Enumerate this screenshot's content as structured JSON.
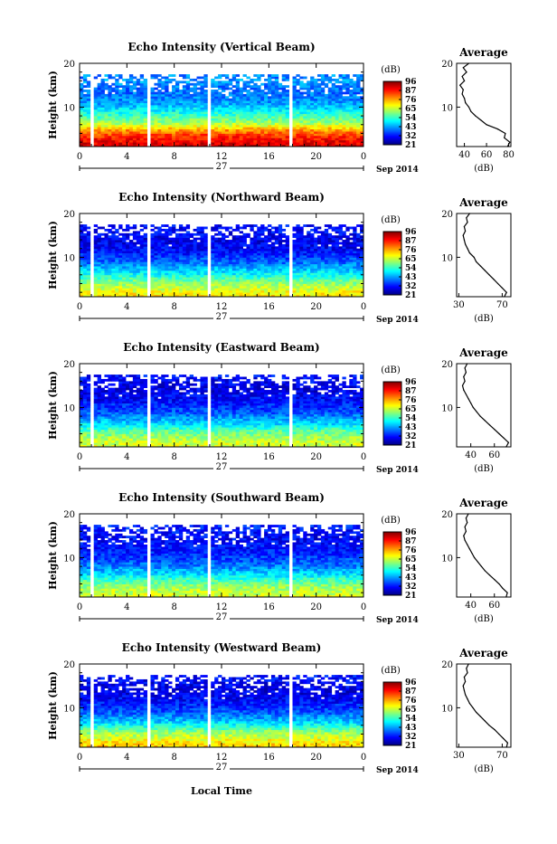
{
  "figure": {
    "xlabel": "Local Time",
    "day_label": "27",
    "date_label": "Sep 2014",
    "x_ticks": [
      "0",
      "4",
      "8",
      "12",
      "16",
      "20",
      "0"
    ],
    "ylabel": "Height (km)",
    "y_ticks": [
      "10",
      "20"
    ],
    "colorbar_unit": "(dB)",
    "colorbar_ticks": [
      "96",
      "87",
      "76",
      "65",
      "54",
      "43",
      "32",
      "21"
    ],
    "avg_title": "Average",
    "avg_xlabel": "(dB)"
  },
  "chart_data": [
    {
      "type": "heatmap",
      "title": "Echo Intensity (Vertical Beam)",
      "x_range_hours": [
        0,
        24
      ],
      "y_range_km": [
        1,
        20
      ],
      "c_range_db": [
        21,
        96
      ],
      "profile": [
        [
          1,
          90
        ],
        [
          2,
          88
        ],
        [
          3,
          85
        ],
        [
          4,
          80
        ],
        [
          5,
          74
        ],
        [
          6,
          64
        ],
        [
          7,
          58
        ],
        [
          8,
          54
        ],
        [
          9,
          50
        ],
        [
          10,
          46
        ],
        [
          11,
          42
        ],
        [
          12,
          40
        ],
        [
          13,
          39
        ],
        [
          14,
          38
        ],
        [
          15,
          40
        ],
        [
          16,
          42
        ],
        [
          17,
          39
        ],
        [
          18,
          44
        ],
        [
          19,
          48
        ],
        [
          20,
          50
        ]
      ],
      "gaps_hours": [
        [
          0.9,
          1.2
        ],
        [
          5.7,
          5.9
        ],
        [
          10.7,
          11.1
        ],
        [
          17.6,
          17.9
        ]
      ],
      "avg": {
        "xlim": [
          33,
          82
        ],
        "xticks": [
          "40",
          "60",
          "80"
        ],
        "height_km": [
          1,
          2,
          3,
          4,
          5,
          6,
          7,
          8,
          9,
          10,
          11,
          12,
          13,
          14,
          15,
          16,
          17,
          18,
          19,
          20
        ],
        "db": [
          79,
          81,
          76,
          77,
          70,
          60,
          55,
          50,
          46,
          44,
          41,
          40,
          38,
          39,
          36,
          40,
          38,
          42,
          39,
          44
        ]
      }
    },
    {
      "type": "heatmap",
      "title": "Echo Intensity (Northward Beam)",
      "x_range_hours": [
        0,
        24
      ],
      "y_range_km": [
        1,
        20
      ],
      "c_range_db": [
        21,
        96
      ],
      "profile": [
        [
          1,
          70
        ],
        [
          2,
          68
        ],
        [
          3,
          64
        ],
        [
          4,
          60
        ],
        [
          5,
          56
        ],
        [
          6,
          50
        ],
        [
          7,
          46
        ],
        [
          8,
          42
        ],
        [
          9,
          38
        ],
        [
          10,
          35
        ],
        [
          11,
          32
        ],
        [
          12,
          30
        ],
        [
          13,
          30
        ],
        [
          14,
          28
        ],
        [
          15,
          30
        ],
        [
          16,
          31
        ],
        [
          17,
          30
        ],
        [
          18,
          32
        ],
        [
          19,
          34
        ],
        [
          20,
          36
        ]
      ],
      "gaps_hours": [
        [
          0.9,
          1.2
        ],
        [
          5.7,
          5.9
        ],
        [
          10.7,
          11.1
        ],
        [
          17.6,
          17.9
        ]
      ],
      "avg": {
        "xlim": [
          28,
          78
        ],
        "xticks": [
          "30",
          "70"
        ],
        "height_km": [
          1,
          2,
          3,
          4,
          5,
          6,
          7,
          8,
          9,
          10,
          11,
          12,
          13,
          14,
          15,
          16,
          17,
          18,
          19,
          20
        ],
        "db": [
          72,
          74,
          70,
          66,
          62,
          58,
          54,
          50,
          46,
          44,
          40,
          38,
          36,
          35,
          34,
          36,
          35,
          38,
          37,
          40
        ]
      }
    },
    {
      "type": "heatmap",
      "title": "Echo Intensity (Eastward Beam)",
      "x_range_hours": [
        0,
        24
      ],
      "y_range_km": [
        1,
        20
      ],
      "c_range_db": [
        21,
        96
      ],
      "profile": [
        [
          1,
          66
        ],
        [
          2,
          64
        ],
        [
          3,
          62
        ],
        [
          4,
          58
        ],
        [
          5,
          54
        ],
        [
          6,
          48
        ],
        [
          7,
          44
        ],
        [
          8,
          40
        ],
        [
          9,
          36
        ],
        [
          10,
          34
        ],
        [
          11,
          32
        ],
        [
          12,
          30
        ],
        [
          13,
          30
        ],
        [
          14,
          28
        ],
        [
          15,
          29
        ],
        [
          16,
          30
        ],
        [
          17,
          31
        ],
        [
          18,
          32
        ],
        [
          19,
          33
        ],
        [
          20,
          34
        ]
      ],
      "gaps_hours": [
        [
          0.9,
          1.2
        ],
        [
          5.7,
          5.9
        ],
        [
          10.7,
          11.1
        ],
        [
          17.6,
          17.9
        ]
      ],
      "avg": {
        "xlim": [
          28,
          74
        ],
        "xticks": [
          "40",
          "60"
        ],
        "height_km": [
          1,
          2,
          3,
          4,
          5,
          6,
          7,
          8,
          9,
          10,
          11,
          12,
          13,
          14,
          15,
          16,
          17,
          18,
          19,
          20
        ],
        "db": [
          70,
          72,
          68,
          64,
          60,
          56,
          52,
          48,
          45,
          42,
          40,
          38,
          36,
          34,
          33,
          35,
          34,
          36,
          35,
          37
        ]
      }
    },
    {
      "type": "heatmap",
      "title": "Echo Intensity (Southward Beam)",
      "x_range_hours": [
        0,
        24
      ],
      "y_range_km": [
        1,
        20
      ],
      "c_range_db": [
        21,
        96
      ],
      "profile": [
        [
          1,
          66
        ],
        [
          2,
          64
        ],
        [
          3,
          62
        ],
        [
          4,
          58
        ],
        [
          5,
          54
        ],
        [
          6,
          48
        ],
        [
          7,
          44
        ],
        [
          8,
          40
        ],
        [
          9,
          37
        ],
        [
          10,
          35
        ],
        [
          11,
          33
        ],
        [
          12,
          32
        ],
        [
          13,
          31
        ],
        [
          14,
          30
        ],
        [
          15,
          30
        ],
        [
          16,
          31
        ],
        [
          17,
          32
        ],
        [
          18,
          33
        ],
        [
          19,
          33
        ],
        [
          20,
          34
        ]
      ],
      "gaps_hours": [
        [
          0.9,
          1.2
        ],
        [
          5.7,
          5.9
        ],
        [
          10.7,
          11.1
        ],
        [
          17.6,
          17.9
        ]
      ],
      "avg": {
        "xlim": [
          28,
          74
        ],
        "xticks": [
          "40",
          "60"
        ],
        "height_km": [
          1,
          2,
          3,
          4,
          5,
          6,
          7,
          8,
          9,
          10,
          11,
          12,
          13,
          14,
          15,
          16,
          17,
          18,
          19,
          20
        ],
        "db": [
          70,
          71,
          67,
          64,
          60,
          56,
          52,
          49,
          46,
          43,
          41,
          39,
          37,
          35,
          34,
          36,
          35,
          37,
          36,
          38
        ]
      }
    },
    {
      "type": "heatmap",
      "title": "Echo Intensity (Westward Beam)",
      "x_range_hours": [
        0,
        24
      ],
      "y_range_km": [
        1,
        20
      ],
      "c_range_db": [
        21,
        96
      ],
      "profile": [
        [
          1,
          72
        ],
        [
          2,
          70
        ],
        [
          3,
          66
        ],
        [
          4,
          62
        ],
        [
          5,
          57
        ],
        [
          6,
          50
        ],
        [
          7,
          45
        ],
        [
          8,
          41
        ],
        [
          9,
          37
        ],
        [
          10,
          34
        ],
        [
          11,
          32
        ],
        [
          12,
          30
        ],
        [
          13,
          29
        ],
        [
          14,
          28
        ],
        [
          15,
          29
        ],
        [
          16,
          30
        ],
        [
          17,
          31
        ],
        [
          18,
          32
        ],
        [
          19,
          33
        ],
        [
          20,
          34
        ]
      ],
      "gaps_hours": [
        [
          0.9,
          1.2
        ],
        [
          5.7,
          5.9
        ],
        [
          10.7,
          11.1
        ],
        [
          17.6,
          17.9
        ]
      ],
      "avg": {
        "xlim": [
          28,
          78
        ],
        "xticks": [
          "30",
          "70"
        ],
        "height_km": [
          1,
          2,
          3,
          4,
          5,
          6,
          7,
          8,
          9,
          10,
          11,
          12,
          13,
          14,
          15,
          16,
          17,
          18,
          19,
          20
        ],
        "db": [
          74,
          75,
          71,
          67,
          63,
          58,
          54,
          50,
          46,
          43,
          40,
          38,
          36,
          35,
          34,
          36,
          35,
          38,
          37,
          39
        ]
      }
    }
  ]
}
